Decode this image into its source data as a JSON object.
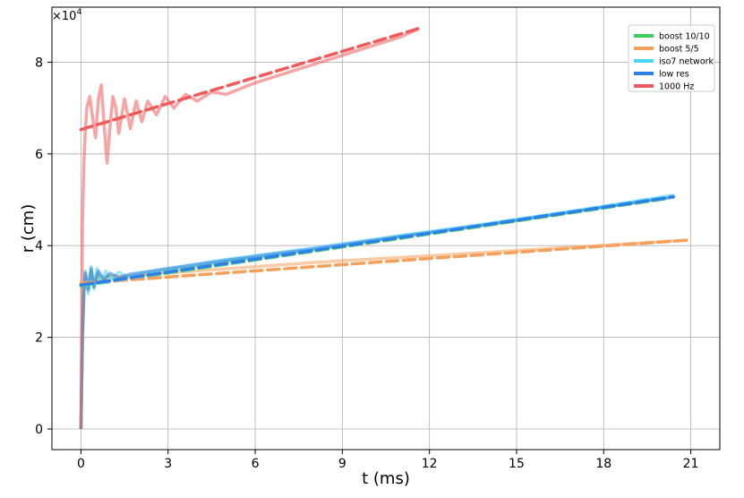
{
  "chart_data": {
    "type": "line",
    "xlabel": "t (ms)",
    "ylabel": "r (cm)",
    "y_offset_label": "×10",
    "y_offset_exponent": "4",
    "xlim": [
      -1,
      22
    ],
    "ylim": [
      -4500,
      92000
    ],
    "x_ticks": [
      0,
      3,
      6,
      9,
      12,
      15,
      18,
      21
    ],
    "x_tick_labels": [
      "0",
      "3",
      "6",
      "9",
      "12",
      "15",
      "18",
      "21"
    ],
    "y_ticks": [
      0,
      20000,
      40000,
      60000,
      80000
    ],
    "y_tick_labels": [
      "0",
      "2",
      "4",
      "6",
      "8"
    ],
    "grid": true,
    "legend_position": "top-right",
    "series": [
      {
        "name": "boost 10/10",
        "color": "#3fcf5f",
        "raw": [
          [
            0,
            0
          ],
          [
            0.05,
            20000
          ],
          [
            0.1,
            30000
          ],
          [
            0.15,
            33500
          ],
          [
            0.25,
            30500
          ],
          [
            0.35,
            34500
          ],
          [
            0.45,
            31000
          ],
          [
            0.55,
            34000
          ],
          [
            0.7,
            32000
          ],
          [
            0.9,
            33500
          ],
          [
            1.2,
            32700
          ],
          [
            1.6,
            33300
          ],
          [
            2.0,
            33300
          ],
          [
            3.0,
            34500
          ],
          [
            5.0,
            36500
          ],
          [
            8.0,
            39000
          ],
          [
            11.0,
            42000
          ],
          [
            14.0,
            44500
          ],
          [
            17.0,
            47500
          ],
          [
            20.3,
            50500
          ]
        ],
        "fit": [
          [
            0,
            31200
          ],
          [
            20.2,
            50300
          ]
        ]
      },
      {
        "name": "boost 5/5",
        "color": "#f5a05a",
        "raw": [
          [
            0,
            0
          ],
          [
            0.05,
            20000
          ],
          [
            0.1,
            30000
          ],
          [
            0.15,
            34000
          ],
          [
            0.25,
            30000
          ],
          [
            0.35,
            34500
          ],
          [
            0.45,
            31000
          ],
          [
            0.6,
            33800
          ],
          [
            0.8,
            32500
          ],
          [
            1.0,
            33500
          ],
          [
            1.5,
            33200
          ],
          [
            2.0,
            33500
          ],
          [
            4.0,
            34500
          ],
          [
            8.0,
            36300
          ],
          [
            12.0,
            37800
          ],
          [
            16.0,
            39300
          ],
          [
            20.9,
            41200
          ]
        ],
        "fit": [
          [
            0,
            31800
          ],
          [
            20.9,
            41200
          ]
        ]
      },
      {
        "name": "iso7 network",
        "color": "#4dd4f7",
        "raw": [
          [
            0,
            0
          ],
          [
            0.05,
            20000
          ],
          [
            0.1,
            30000
          ],
          [
            0.15,
            34500
          ],
          [
            0.25,
            29500
          ],
          [
            0.35,
            35500
          ],
          [
            0.45,
            30500
          ],
          [
            0.55,
            35000
          ],
          [
            0.7,
            32000
          ],
          [
            0.85,
            34500
          ],
          [
            1.0,
            32500
          ],
          [
            1.3,
            34200
          ],
          [
            1.6,
            33200
          ],
          [
            2.0,
            34000
          ],
          [
            3.0,
            35000
          ],
          [
            5.0,
            37000
          ],
          [
            8.0,
            39500
          ],
          [
            11.0,
            42200
          ],
          [
            14.0,
            44800
          ],
          [
            17.0,
            47600
          ],
          [
            20.4,
            51000
          ]
        ],
        "fit": [
          [
            0,
            31300
          ],
          [
            20.4,
            50800
          ]
        ]
      },
      {
        "name": "low res",
        "color": "#2f7fe6",
        "raw": [
          [
            0,
            0
          ],
          [
            0.05,
            20000
          ],
          [
            0.1,
            30000
          ],
          [
            0.15,
            34000
          ],
          [
            0.25,
            30500
          ],
          [
            0.35,
            35000
          ],
          [
            0.45,
            31000
          ],
          [
            0.6,
            34500
          ],
          [
            0.8,
            32500
          ],
          [
            1.0,
            34000
          ],
          [
            1.3,
            33000
          ],
          [
            1.7,
            33800
          ],
          [
            2.0,
            34000
          ],
          [
            3.0,
            35000
          ],
          [
            5.0,
            36800
          ],
          [
            8.0,
            39300
          ],
          [
            11.0,
            42000
          ],
          [
            14.0,
            44600
          ],
          [
            17.0,
            47400
          ],
          [
            20.4,
            50600
          ]
        ],
        "fit": [
          [
            0,
            31400
          ],
          [
            20.4,
            50600
          ]
        ]
      },
      {
        "name": "1000 Hz",
        "color": "#f05a5a",
        "raw": [
          [
            0,
            0
          ],
          [
            0.05,
            45000
          ],
          [
            0.1,
            58000
          ],
          [
            0.15,
            65000
          ],
          [
            0.2,
            70000
          ],
          [
            0.3,
            72500
          ],
          [
            0.4,
            68000
          ],
          [
            0.5,
            63500
          ],
          [
            0.6,
            72000
          ],
          [
            0.7,
            75000
          ],
          [
            0.8,
            66000
          ],
          [
            0.9,
            58000
          ],
          [
            1.0,
            66000
          ],
          [
            1.1,
            72500
          ],
          [
            1.2,
            70000
          ],
          [
            1.3,
            64500
          ],
          [
            1.5,
            72000
          ],
          [
            1.7,
            65500
          ],
          [
            1.9,
            71500
          ],
          [
            2.1,
            67000
          ],
          [
            2.3,
            71500
          ],
          [
            2.6,
            68500
          ],
          [
            2.9,
            72500
          ],
          [
            3.2,
            70000
          ],
          [
            3.6,
            73000
          ],
          [
            4.0,
            71500
          ],
          [
            4.5,
            73500
          ],
          [
            5.0,
            73000
          ],
          [
            6.0,
            75500
          ],
          [
            7.0,
            77500
          ],
          [
            8.0,
            79500
          ],
          [
            9.0,
            81500
          ],
          [
            10.0,
            83500
          ],
          [
            11.0,
            85500
          ],
          [
            11.6,
            87200
          ]
        ],
        "fit": [
          [
            0,
            65300
          ],
          [
            11.6,
            87300
          ]
        ]
      }
    ]
  }
}
